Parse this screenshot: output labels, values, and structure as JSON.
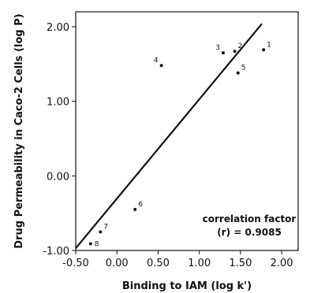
{
  "chart_data": {
    "type": "scatter",
    "title": "",
    "xlabel": "Binding to IAM (log k')",
    "ylabel": "Drug Permeability in Caco-2 Cells (log P)",
    "xlim": [
      -0.5,
      2.2
    ],
    "ylim": [
      -1.0,
      2.2
    ],
    "x_ticks": [
      -0.5,
      0.0,
      0.5,
      1.0,
      1.5,
      2.0
    ],
    "x_tick_labels": [
      "-0.50",
      "0.00",
      "0.50",
      "1.00",
      "1.50",
      "2.00"
    ],
    "y_ticks": [
      -1.0,
      0.0,
      1.0,
      2.0
    ],
    "y_tick_labels": [
      "-1.00",
      "0.00",
      "1.00",
      "2.00"
    ],
    "grid": false,
    "points": [
      {
        "label": "1",
        "x": 1.78,
        "y": 1.69
      },
      {
        "label": "2",
        "x": 1.43,
        "y": 1.67
      },
      {
        "label": "3",
        "x": 1.29,
        "y": 1.65
      },
      {
        "label": "4",
        "x": 0.54,
        "y": 1.48
      },
      {
        "label": "5",
        "x": 1.47,
        "y": 1.38
      },
      {
        "label": "6",
        "x": 0.22,
        "y": -0.45
      },
      {
        "label": "7",
        "x": -0.2,
        "y": -0.75
      },
      {
        "label": "8",
        "x": -0.32,
        "y": -0.91
      }
    ],
    "fit_line": {
      "x": [
        -0.5,
        1.76
      ],
      "y": [
        -0.97,
        2.04
      ]
    },
    "annotation": {
      "line1": "correlation factor",
      "line2": "(r) = 0.9085"
    }
  }
}
